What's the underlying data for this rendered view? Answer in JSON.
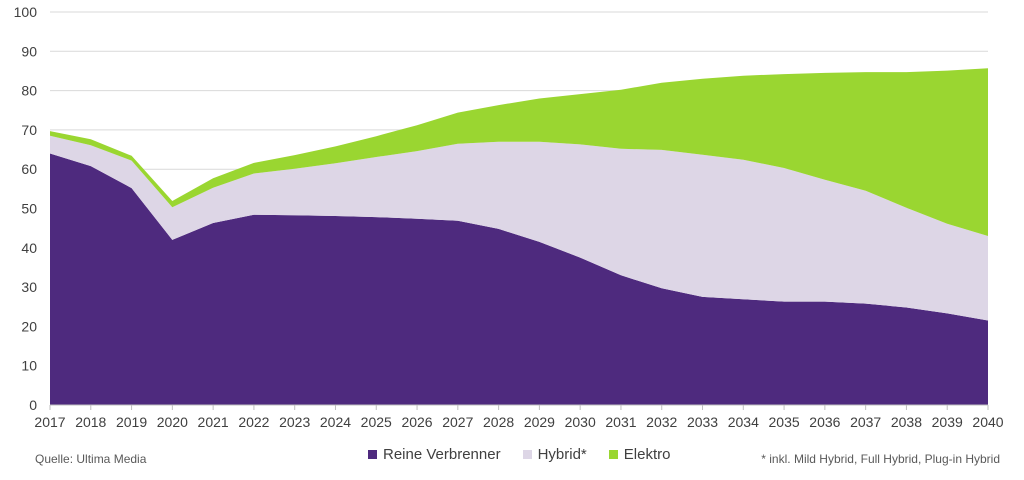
{
  "chart_data": {
    "type": "area",
    "stacked": true,
    "x": [
      "2017",
      "2018",
      "2019",
      "2020",
      "2021",
      "2022",
      "2023",
      "2024",
      "2025",
      "2026",
      "2027",
      "2028",
      "2029",
      "2030",
      "2031",
      "2032",
      "2033",
      "2034",
      "2035",
      "2036",
      "2037",
      "2038",
      "2039",
      "2040"
    ],
    "series": [
      {
        "name": "Reine Verbrenner",
        "color": "#4e2a7e",
        "values": [
          64.0,
          60.8,
          55.2,
          42.0,
          46.3,
          48.4,
          48.3,
          48.1,
          47.8,
          47.4,
          46.9,
          44.8,
          41.5,
          37.5,
          33.0,
          29.7,
          27.5,
          26.9,
          26.3,
          26.3,
          25.8,
          24.8,
          23.3,
          21.5
        ]
      },
      {
        "name": "Hybrid*",
        "color": "#ddd6e6",
        "values": [
          4.5,
          5.3,
          7.0,
          8.3,
          9.0,
          10.5,
          11.8,
          13.4,
          15.3,
          17.2,
          19.6,
          22.2,
          25.5,
          28.8,
          32.2,
          35.2,
          36.2,
          35.5,
          34.0,
          31.0,
          28.7,
          25.4,
          22.8,
          21.5
        ]
      },
      {
        "name": "Elektro",
        "color": "#9ad631",
        "values": [
          1.2,
          1.5,
          1.2,
          1.6,
          2.4,
          2.7,
          3.5,
          4.3,
          5.3,
          6.6,
          7.9,
          9.3,
          11.0,
          12.8,
          15.0,
          17.1,
          19.3,
          21.4,
          23.9,
          27.2,
          30.2,
          34.5,
          39.0,
          42.7
        ]
      }
    ],
    "ylim": [
      0,
      100
    ],
    "yticks": [
      "0",
      "10",
      "20",
      "30",
      "40",
      "50",
      "60",
      "70",
      "80",
      "90",
      "100"
    ],
    "grid": true,
    "legend_position": "bottom-center"
  },
  "footer": {
    "source": "Quelle: Ultima Media",
    "note": "* inkl. Mild Hybrid, Full Hybrid, Plug-in Hybrid"
  }
}
